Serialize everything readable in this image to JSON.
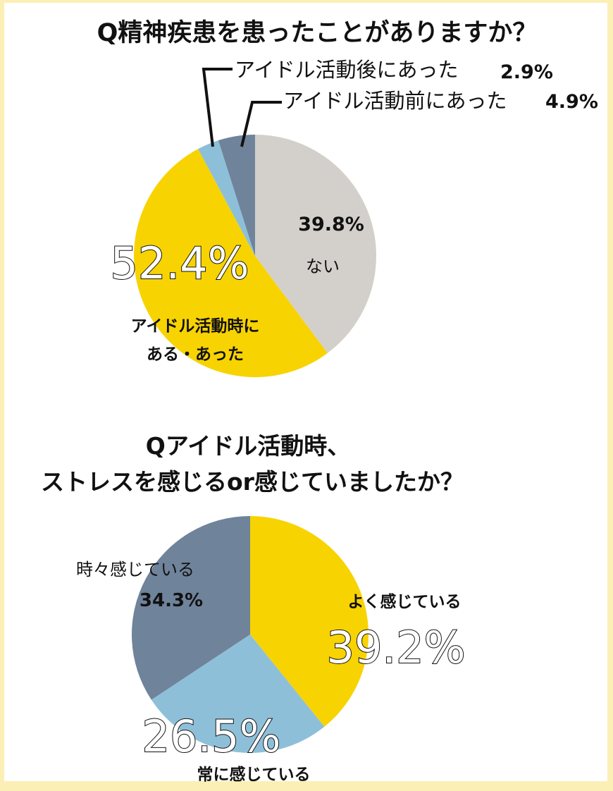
{
  "chart_data": [
    {
      "type": "pie",
      "title": "Q精神疾患を患ったことがありますか？",
      "slices": [
        {
          "label": "ない",
          "value": 39.8,
          "display": "39.8%",
          "color": "#d3d0cb"
        },
        {
          "label": "アイドル活動時にある・あった",
          "label_line1": "アイドル活動時に",
          "label_line2": "ある・あった",
          "value": 52.4,
          "display": "52.4%",
          "color": "#f8d302"
        },
        {
          "label": "アイドル活動後にあった",
          "value": 2.9,
          "display": "2.9%",
          "color": "#8ebfd9"
        },
        {
          "label": "アイドル活動前にあった",
          "value": 4.9,
          "display": "4.9%",
          "color": "#6f839b"
        }
      ]
    },
    {
      "type": "pie",
      "title_line1": "Qアイドル活動時、",
      "title_line2": "ストレスを感じるor感じていましたか？",
      "slices": [
        {
          "label": "よく感じている",
          "value": 39.2,
          "display": "39.2%",
          "color": "#f8d302"
        },
        {
          "label": "常に感じている",
          "value": 26.5,
          "display": "26.5%",
          "color": "#8ebfd9"
        },
        {
          "label": "時々感じている",
          "value": 34.3,
          "display": "34.3%",
          "color": "#6f839b"
        }
      ]
    }
  ]
}
